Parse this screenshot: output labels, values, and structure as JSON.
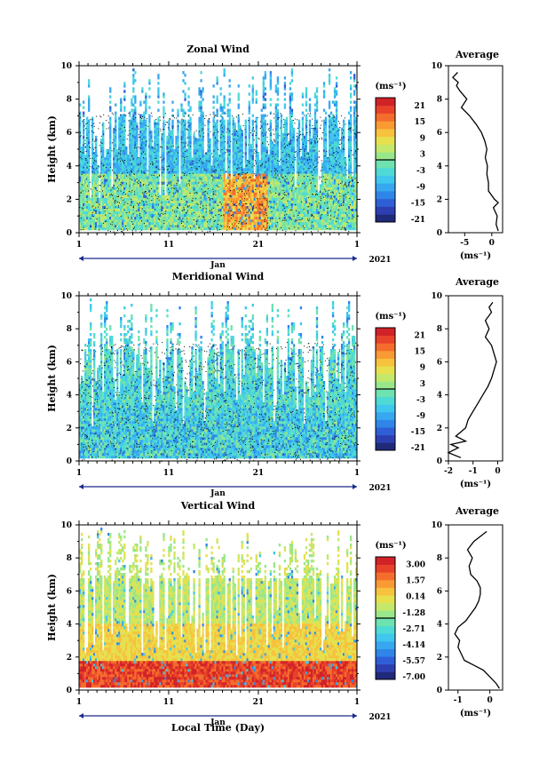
{
  "x_axis": {
    "month": "Jan",
    "year": "2021",
    "xlabel": "Local Time (Day)",
    "ticks": [
      "1",
      "11",
      "21",
      "1"
    ]
  },
  "y_label": "Height (km)",
  "avg_title": "Average",
  "units": "(ms⁻¹)",
  "chart_data": [
    {
      "type": "heatmap",
      "title": "Zonal Wind",
      "ylabel": "Height (km)",
      "ylim": [
        0,
        10
      ],
      "yticks": [
        "0",
        "2",
        "4",
        "6",
        "8",
        "10"
      ],
      "colorbar": {
        "label": "(ms⁻¹)",
        "ticks": [
          "21",
          "15",
          "9",
          "3",
          "-3",
          "-9",
          "-15",
          "-21"
        ],
        "range": [
          -24,
          24
        ]
      },
      "colors": [
        "#1f2a7a",
        "#2d3fb0",
        "#2f5fd6",
        "#2f86e8",
        "#37a8f0",
        "#3fc7ee",
        "#4fdad5",
        "#6ee3b0",
        "#98e78a",
        "#c4e86a",
        "#e6e04f",
        "#f7c23e",
        "#f99a34",
        "#f46d2c",
        "#e8422a",
        "#d12228"
      ],
      "avg_profile": {
        "xlim": [
          -8,
          2
        ],
        "xticks": [
          "-5",
          "0"
        ],
        "height": [
          0.1,
          0.5,
          1.0,
          1.5,
          1.8,
          2.0,
          2.5,
          3.0,
          3.5,
          4.0,
          4.5,
          5.0,
          5.5,
          6.0,
          6.5,
          7.0,
          7.5,
          8.0,
          8.5,
          8.8,
          9.0,
          9.3,
          9.6
        ],
        "value": [
          1.2,
          0.8,
          1.0,
          0.3,
          1.2,
          0.5,
          -0.6,
          -0.6,
          -0.9,
          -0.8,
          -1.2,
          -0.9,
          -1.3,
          -1.9,
          -2.9,
          -4.1,
          -5.6,
          -4.6,
          -5.9,
          -6.5,
          -6.2,
          -7.2,
          -6.3
        ]
      }
    },
    {
      "type": "heatmap",
      "title": "Meridional Wind",
      "ylabel": "Height (km)",
      "ylim": [
        0,
        10
      ],
      "yticks": [
        "0",
        "2",
        "4",
        "6",
        "8",
        "10"
      ],
      "colorbar": {
        "label": "(ms⁻¹)",
        "ticks": [
          "21",
          "15",
          "9",
          "3",
          "-3",
          "-9",
          "-15",
          "-21"
        ],
        "range": [
          -24,
          24
        ]
      },
      "colors": [
        "#1f2a7a",
        "#2d3fb0",
        "#2f5fd6",
        "#2f86e8",
        "#37a8f0",
        "#3fc7ee",
        "#4fdad5",
        "#6ee3b0",
        "#98e78a",
        "#c4e86a",
        "#e6e04f",
        "#f7c23e",
        "#f99a34",
        "#f46d2c",
        "#e8422a",
        "#d12228"
      ],
      "avg_profile": {
        "xlim": [
          -2,
          0.2
        ],
        "xticks": [
          "-2",
          "-1",
          "0"
        ],
        "height": [
          0.2,
          0.5,
          0.8,
          1.0,
          1.2,
          1.5,
          2.0,
          2.5,
          3.0,
          3.5,
          4.0,
          4.5,
          5.0,
          5.5,
          6.0,
          6.5,
          7.0,
          7.5,
          8.0,
          8.5,
          9.0,
          9.3,
          9.6
        ],
        "value": [
          -1.5,
          -2.0,
          -1.6,
          -1.9,
          -1.3,
          -1.7,
          -1.3,
          -1.2,
          -1.0,
          -0.8,
          -0.6,
          -0.4,
          -0.25,
          -0.15,
          -0.05,
          -0.15,
          -0.25,
          -0.5,
          -0.35,
          -0.5,
          -0.25,
          -0.35,
          -0.2
        ]
      }
    },
    {
      "type": "heatmap",
      "title": "Vertical Wind",
      "ylabel": "Height (km)",
      "ylim": [
        0,
        10
      ],
      "yticks": [
        "0",
        "2",
        "4",
        "6",
        "8",
        "10"
      ],
      "colorbar": {
        "label": "(ms⁻¹)",
        "ticks": [
          "3.00",
          "1.57",
          "0.14",
          "-1.28",
          "-2.71",
          "-4.14",
          "-5.57",
          "-7.00"
        ],
        "range": [
          -8,
          3.5
        ]
      },
      "colors": [
        "#1f2a7a",
        "#2d3fb0",
        "#2f5fd6",
        "#2f86e8",
        "#37a8f0",
        "#3fc7ee",
        "#4fdad5",
        "#6ee3b0",
        "#98e78a",
        "#c4e86a",
        "#e6e04f",
        "#f7c23e",
        "#f99a34",
        "#f46d2c",
        "#e8422a",
        "#d12228"
      ],
      "avg_profile": {
        "xlim": [
          -1.3,
          0.4
        ],
        "xticks": [
          "-1",
          "0"
        ],
        "height": [
          0.1,
          0.4,
          0.8,
          1.2,
          1.5,
          1.8,
          2.2,
          2.6,
          3.0,
          3.4,
          3.8,
          4.2,
          4.6,
          5.0,
          5.4,
          5.8,
          6.2,
          6.6,
          7.0,
          7.5,
          8.0,
          8.5,
          9.0,
          9.3,
          9.6
        ],
        "value": [
          0.3,
          0.2,
          0.0,
          -0.2,
          -0.5,
          -0.8,
          -0.9,
          -1.0,
          -0.95,
          -1.1,
          -1.0,
          -0.75,
          -0.6,
          -0.45,
          -0.35,
          -0.3,
          -0.3,
          -0.4,
          -0.6,
          -0.65,
          -0.55,
          -0.7,
          -0.5,
          -0.3,
          -0.1
        ]
      }
    }
  ]
}
